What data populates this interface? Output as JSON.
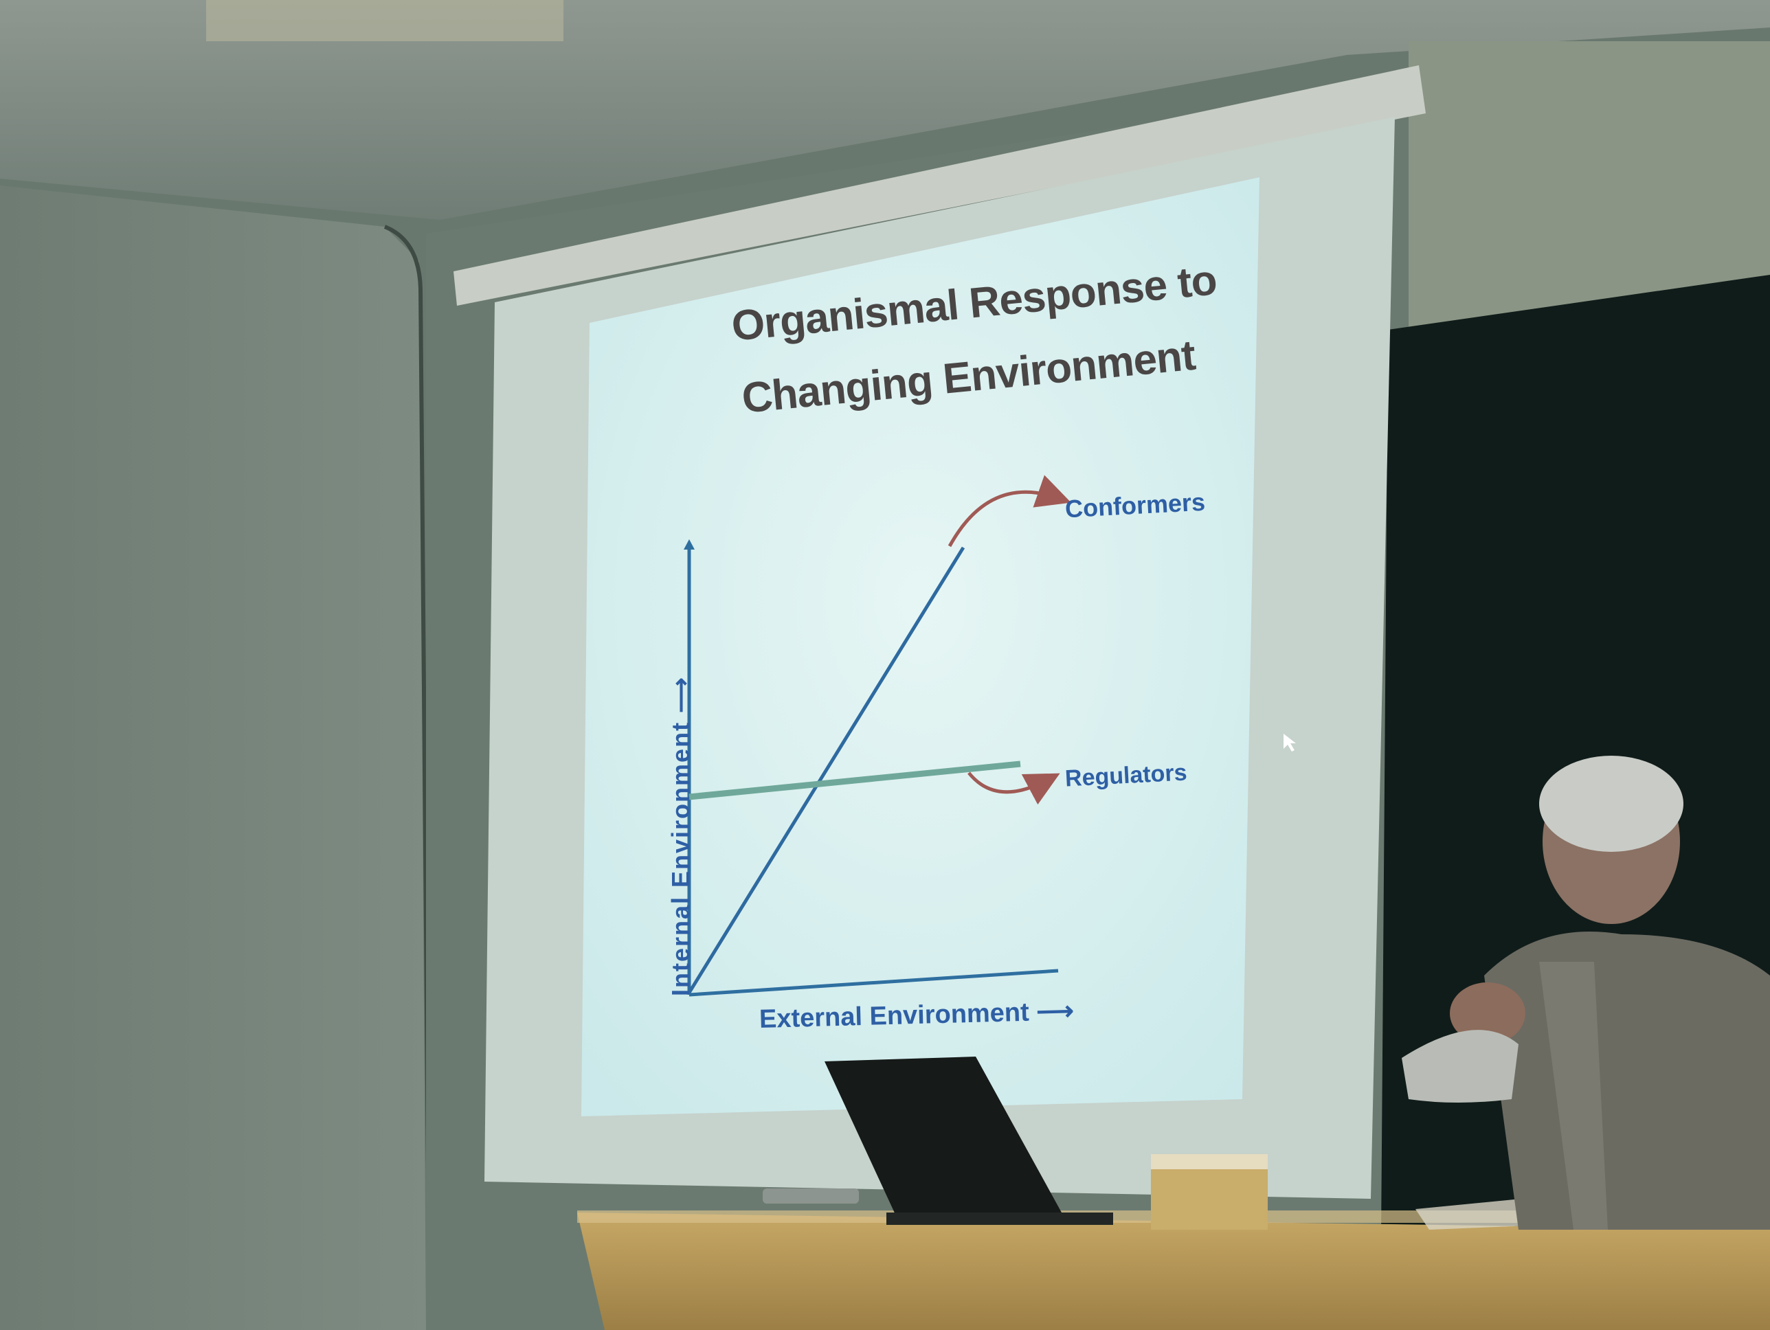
{
  "slide": {
    "title_line1": "Organismal Response to",
    "title_line2": "Changing Environment",
    "y_axis_label": "Internal Environment",
    "x_axis_label": "External Environment",
    "conformers_label": "Conformers",
    "regulators_label": "Regulators",
    "arrow_symbol": "⟶"
  },
  "colors": {
    "slide_background": "#dff3f3",
    "axis_line": "#2f6fa0",
    "conformer_line": "#2e6aa0",
    "regulator_line": "#6fa89a",
    "curved_arrow": "#a05a55",
    "label_blue": "#2e5fa5",
    "title_text": "#4a4646",
    "chalkboard": "#101c1a",
    "desk": "#b89a5a"
  },
  "chart_data": {
    "type": "line",
    "title": "Organismal Response to Changing Environment",
    "xlabel": "External Environment",
    "ylabel": "Internal Environment",
    "grid": false,
    "series": [
      {
        "name": "Conformers",
        "x": [
          0,
          1
        ],
        "y": [
          0,
          1
        ]
      },
      {
        "name": "Regulators",
        "x": [
          0,
          1
        ],
        "y": [
          0.45,
          0.45
        ]
      }
    ]
  }
}
